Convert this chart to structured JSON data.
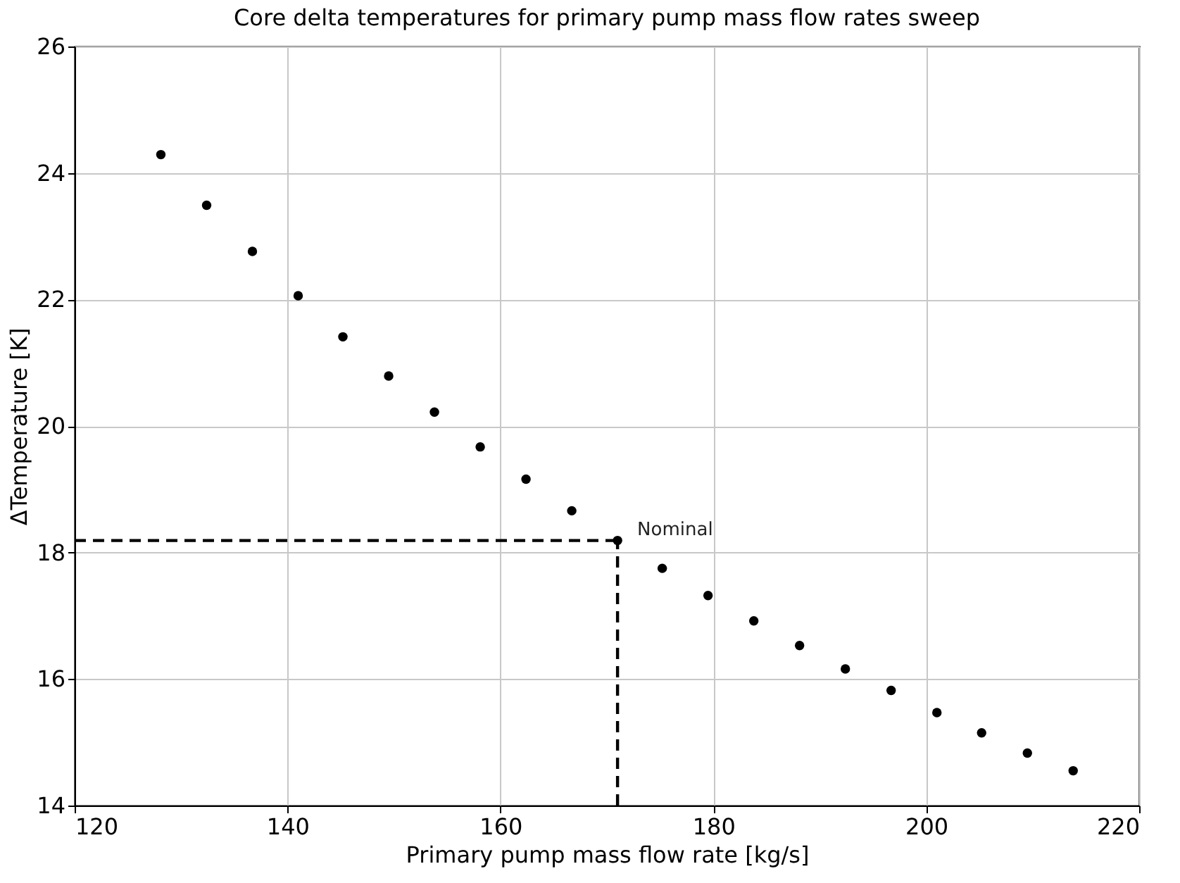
{
  "chart_data": {
    "type": "scatter",
    "title": "Core delta temperatures for primary pump mass flow rates sweep",
    "xlabel": "Primary pump mass flow rate [kg/s]",
    "ylabel": "ΔTemperature [K]",
    "x": [
      128.1,
      132.4,
      136.7,
      141.0,
      145.2,
      149.5,
      153.8,
      158.1,
      162.4,
      166.7,
      171.0,
      175.2,
      179.5,
      183.8,
      188.1,
      192.4,
      196.7,
      201.0,
      205.2,
      209.5,
      213.8
    ],
    "series": [
      {
        "color": "#000000",
        "values": [
          24.29,
          23.49,
          22.76,
          22.06,
          21.41,
          20.79,
          20.22,
          19.67,
          19.16,
          18.66,
          18.19,
          17.75,
          17.32,
          16.92,
          16.53,
          16.16,
          15.82,
          15.47,
          15.15,
          14.83,
          14.55
        ]
      }
    ],
    "xlim": [
      120,
      220
    ],
    "xticks": [
      120,
      140,
      160,
      180,
      200,
      220
    ],
    "ylim": [
      14,
      26
    ],
    "yticks": [
      14,
      16,
      18,
      20,
      22,
      24,
      26
    ],
    "ref_lines": [
      {
        "axis": "y",
        "value": 18.19,
        "color": "#000000",
        "line_style": "dashed"
      },
      {
        "axis": "x",
        "value": 171.0,
        "color": "#000000",
        "line_style": "dashed"
      }
    ],
    "annotations": [
      {
        "text": "Nominal",
        "x": 171.0,
        "y": 18.19
      }
    ],
    "grid": true,
    "marker": "circle"
  }
}
